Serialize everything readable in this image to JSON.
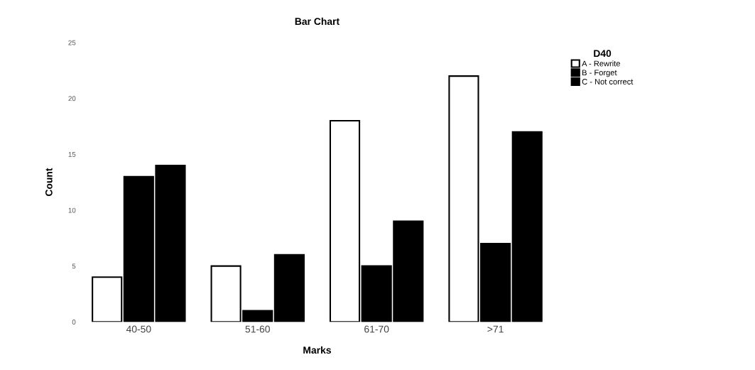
{
  "chart_data": {
    "type": "bar",
    "title": "Bar Chart",
    "xlabel": "Marks",
    "ylabel": "Count",
    "legend_title": "D40",
    "categories": [
      "40-50",
      "51-60",
      "61-70",
      ">71"
    ],
    "series": [
      {
        "name": "A - Rewrite",
        "color": "#ffffff",
        "values": [
          4,
          5,
          18,
          22
        ]
      },
      {
        "name": "B - Forget",
        "color": "#000000",
        "values": [
          13,
          1,
          5,
          7
        ]
      },
      {
        "name": "C - Not correct",
        "color": "#000000",
        "values": [
          14,
          6,
          9,
          17
        ]
      }
    ],
    "ylim": [
      0,
      25
    ],
    "yticks": [
      0,
      5,
      10,
      15,
      20,
      25
    ],
    "grid": false,
    "legend": "top right"
  }
}
